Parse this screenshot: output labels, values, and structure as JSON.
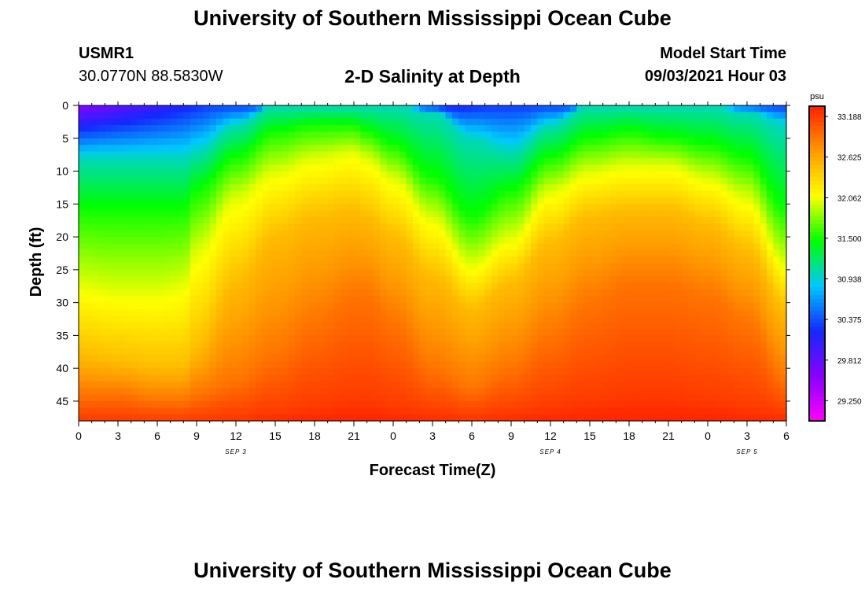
{
  "header": {
    "title": "University of Southern Mississippi Ocean Cube",
    "station": "USMR1",
    "coords": "30.0770N  88.5830W",
    "subtitle": "2-D Salinity at Depth",
    "model_label": "Model Start Time",
    "model_time": "09/03/2021 Hour 03"
  },
  "footer": {
    "title": "University of Southern Mississippi Ocean Cube"
  },
  "colors": {
    "scale": [
      "#ff00ff",
      "#8a00ff",
      "#1428ff",
      "#00c8ff",
      "#00ff00",
      "#ffff00",
      "#ff9a00",
      "#ff2000"
    ]
  },
  "chart_data": {
    "type": "heatmap",
    "title": "2-D Salinity at Depth",
    "xlabel": "Forecast Time(Z)",
    "ylabel": "Depth (ft)",
    "x_hours_range": [
      0,
      54
    ],
    "ylim": [
      0,
      48
    ],
    "y_inverted": true,
    "x_tick_labels": [
      "0",
      "3",
      "6",
      "9",
      "12",
      "15",
      "18",
      "21",
      "0",
      "3",
      "6",
      "9",
      "12",
      "15",
      "18",
      "21",
      "0",
      "3",
      "6"
    ],
    "y_tick_labels": [
      "0",
      "5",
      "10",
      "15",
      "20",
      "25",
      "30",
      "35",
      "40",
      "45"
    ],
    "y_tick_values": [
      0,
      5,
      10,
      15,
      20,
      25,
      30,
      35,
      40,
      45
    ],
    "date_labels": [
      {
        "text": "SEP 3",
        "hour": 12
      },
      {
        "text": "SEP 4",
        "hour": 36
      },
      {
        "text": "SEP 5",
        "hour": 51
      }
    ],
    "colorbar": {
      "unit": "psu",
      "min": 28.97,
      "max": 33.33,
      "tick_labels": [
        "33.188",
        "32.625",
        "32.062",
        "31.500",
        "30.938",
        "30.375",
        "29.812",
        "29.250"
      ],
      "tick_values": [
        33.188,
        32.625,
        32.062,
        31.5,
        30.938,
        30.375,
        29.812,
        29.25
      ]
    },
    "isohaline_depths_ft": {
      "hours": [
        0,
        3,
        6,
        8,
        9,
        12,
        15,
        18,
        21,
        22,
        24,
        27,
        30,
        33,
        36,
        39,
        42,
        45,
        48,
        51,
        54
      ],
      "s31_0": [
        8,
        8,
        8,
        8,
        7,
        3,
        0,
        0,
        0,
        0,
        0,
        1,
        5,
        7,
        3,
        0,
        0,
        0,
        0,
        1,
        3
      ],
      "s31_5": [
        16,
        16,
        16,
        16,
        13,
        8,
        4,
        3,
        3,
        4,
        6,
        11,
        17,
        13,
        8,
        5,
        4,
        5,
        6,
        8,
        16
      ],
      "s32_0": [
        27,
        28,
        28,
        27,
        22,
        14,
        10,
        8,
        7,
        8,
        11,
        17,
        24,
        20,
        13,
        10,
        9,
        9,
        11,
        14,
        24
      ],
      "s32_5": [
        38,
        39,
        40,
        40,
        37,
        27,
        20,
        17,
        16,
        17,
        20,
        26,
        31,
        27,
        21,
        17,
        16,
        16,
        18,
        22,
        31
      ],
      "s32_9": [
        44,
        44,
        45,
        45,
        44,
        42,
        38,
        33,
        29,
        29,
        33,
        40,
        43,
        40,
        35,
        30,
        27,
        27,
        29,
        33,
        42
      ],
      "s33_2": [
        48,
        48,
        48,
        48,
        48,
        47.5,
        47,
        46,
        45,
        45,
        46,
        47,
        47.5,
        47,
        46,
        45,
        44,
        44,
        45,
        46,
        47
      ]
    }
  }
}
